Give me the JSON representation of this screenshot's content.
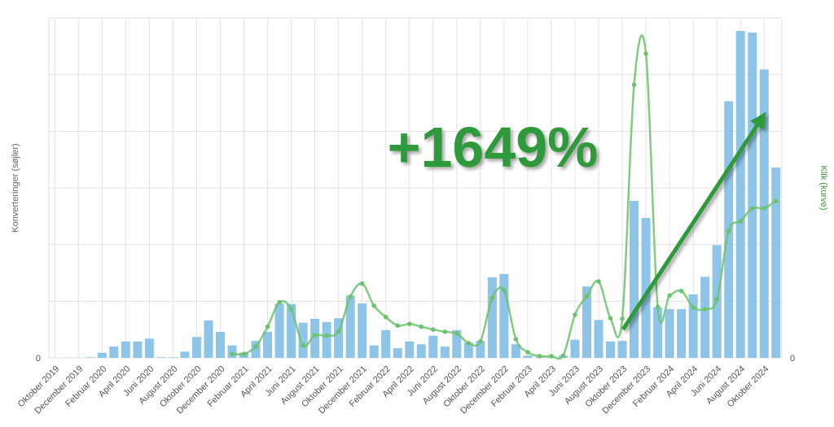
{
  "chart_data": {
    "type": "bar_line",
    "annotation": "+1649%",
    "y_label": "Konverteringer (søjler)",
    "y2_label": "Klik (kurve)",
    "categories": [
      "Oktober 2019",
      null,
      "December 2019",
      null,
      "Februar 2020",
      null,
      "April 2020",
      null,
      "Juni 2020",
      null,
      "August 2020",
      null,
      "Oktober 2020",
      null,
      "December 2020",
      null,
      "Februar 2021",
      null,
      "April 2021",
      null,
      "Juni 2021",
      null,
      "August 2021",
      null,
      "Oktober 2021",
      null,
      "December 2021",
      null,
      "Februar 2022",
      null,
      "April 2022",
      null,
      "Juni 2022",
      null,
      "August 2022",
      null,
      "Oktober 2022",
      null,
      "December 2022",
      null,
      "Februar 2023",
      null,
      "April 2023",
      null,
      "Juni 2023",
      null,
      "August 2023",
      null,
      "Oktober 2023",
      null,
      "December 2023",
      null,
      "Februar 2024",
      null,
      "April 2024",
      null,
      "Juni 2024",
      null,
      "August 2024",
      null,
      "Oktober 2024",
      null
    ],
    "series": [
      {
        "color": "#8ec4e8",
        "values": [
          0,
          0,
          0,
          0.01,
          0.09,
          0.2,
          0.29,
          0.29,
          0.34,
          0.01,
          0.01,
          0.11,
          0.37,
          0.66,
          0.46,
          0.22,
          0.09,
          0.3,
          0.46,
          0.96,
          0.95,
          0.62,
          0.69,
          0.63,
          0.7,
          1.1,
          0.96,
          0.22,
          0.49,
          0.17,
          0.29,
          0.24,
          0.39,
          0.2,
          0.49,
          0.27,
          0.3,
          1.42,
          1.48,
          0.24,
          0.04,
          0.01,
          0.01,
          0.04,
          0.32,
          1.26,
          0.67,
          0.29,
          0.3,
          2.77,
          2.47,
          0.89,
          0.86,
          0.86,
          1.12,
          1.43,
          1.99,
          4.53,
          5.77,
          5.74,
          5.09,
          3.36
        ]
      },
      {
        "color": "#6cc26c",
        "axis": "y2",
        "values": [
          null,
          null,
          null,
          null,
          null,
          null,
          null,
          null,
          null,
          null,
          null,
          null,
          null,
          null,
          null,
          0.07,
          0.07,
          0.2,
          0.55,
          0.98,
          0.86,
          0.22,
          0.4,
          0.39,
          0.47,
          1.08,
          1.31,
          0.92,
          0.72,
          0.57,
          0.6,
          0.55,
          0.5,
          0.46,
          0.43,
          0.26,
          0.29,
          1.06,
          1.19,
          0.33,
          0.1,
          0.03,
          0.03,
          0.04,
          0.76,
          1.09,
          1.35,
          0.7,
          0.69,
          4.82,
          5.37,
          0.9,
          1.1,
          1.18,
          0.89,
          0.86,
          1.03,
          2.24,
          2.41,
          2.64,
          2.64,
          2.77
        ]
      }
    ],
    "ylim": [
      0,
      6
    ],
    "yticks": [
      0
    ],
    "y2lim": [
      0,
      6
    ],
    "y2ticks": [
      0
    ],
    "ygrid": [
      1,
      2,
      3,
      4,
      5,
      6
    ],
    "grid": true
  }
}
